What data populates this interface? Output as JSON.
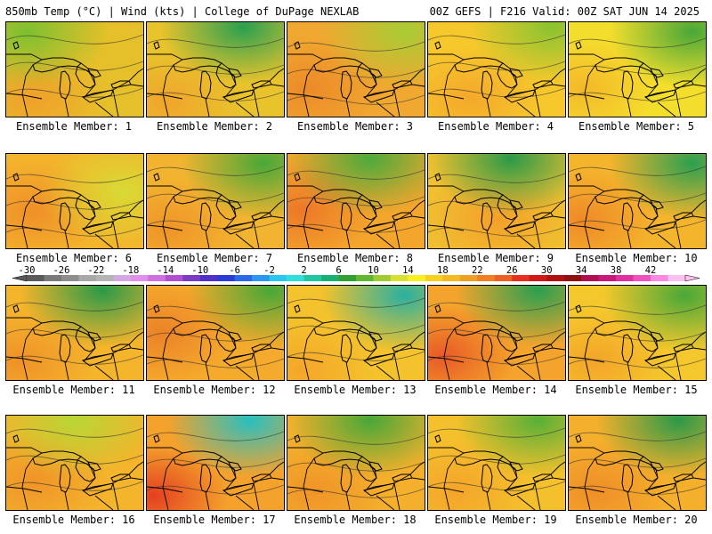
{
  "header": {
    "left": "850mb Temp (°C) | Wind (kts) | College of DuPage NEXLAB",
    "right": "00Z GEFS | F216 Valid: 00Z SAT JUN 14 2025"
  },
  "colorbar": {
    "labels": [
      "-30",
      "-26",
      "-22",
      "-18",
      "-14",
      "-10",
      "-6",
      "-2",
      "2",
      "6",
      "10",
      "14",
      "18",
      "22",
      "26",
      "30",
      "34",
      "38",
      "42"
    ],
    "colors": [
      "#5a5a5a",
      "#7a7a7a",
      "#8e8e8e",
      "#a8a8a8",
      "#b4b4b4",
      "#d4a8e4",
      "#e090e8",
      "#d070e0",
      "#b050d0",
      "#7a3cc4",
      "#5030c8",
      "#2a3cd8",
      "#2a6ae8",
      "#2a98f0",
      "#28c8f0",
      "#30e0d8",
      "#20c8a0",
      "#18b070",
      "#30a030",
      "#60b830",
      "#a0cc30",
      "#d8e030",
      "#f8f020",
      "#f8d020",
      "#f8b820",
      "#f0a020",
      "#f08020",
      "#f06020",
      "#e83020",
      "#d01818",
      "#b01010",
      "#901010",
      "#b01050",
      "#c81878",
      "#e030a0",
      "#f050c0",
      "#f888e0",
      "#fcc0f0"
    ]
  },
  "panels": [
    {
      "label": "Ensemble Member: 1",
      "base": "#e6c02a",
      "warm": "#f0a02a",
      "cool": "#7cc030",
      "coolX": 0.15,
      "coolY": 0.1,
      "warmX": 0.2,
      "warmY": 0.8
    },
    {
      "label": "Ensemble Member: 2",
      "base": "#e8c32c",
      "warm": "#f0a52c",
      "cool": "#2aa050",
      "coolX": 0.7,
      "coolY": 0.05,
      "warmX": 0.15,
      "warmY": 0.85
    },
    {
      "label": "Ensemble Member: 3",
      "base": "#f0a830",
      "warm": "#ec8a28",
      "cool": "#a8cc34",
      "coolX": 0.85,
      "coolY": 0.1,
      "warmX": 0.15,
      "warmY": 0.7
    },
    {
      "label": "Ensemble Member: 4",
      "base": "#f6c82c",
      "warm": "#f4a82a",
      "cool": "#88c430",
      "coolX": 0.9,
      "coolY": 0.05,
      "warmX": 0.3,
      "warmY": 0.8
    },
    {
      "label": "Ensemble Member: 5",
      "base": "#f4de2c",
      "warm": "#f4b82a",
      "cool": "#48a838",
      "coolX": 0.9,
      "coolY": 0.1,
      "warmX": 0.1,
      "warmY": 0.7
    },
    {
      "label": "Ensemble Member: 6",
      "base": "#f4b42c",
      "warm": "#ef8f28",
      "cool": "#d8da34",
      "coolX": 0.85,
      "coolY": 0.4,
      "warmX": 0.2,
      "warmY": 0.6
    },
    {
      "label": "Ensemble Member: 7",
      "base": "#f2b430",
      "warm": "#ef9428",
      "cool": "#48a838",
      "coolX": 0.85,
      "coolY": 0.1,
      "warmX": 0.15,
      "warmY": 0.8
    },
    {
      "label": "Ensemble Member: 8",
      "base": "#f4a62c",
      "warm": "#ec7828",
      "cool": "#4caa3c",
      "coolX": 0.6,
      "coolY": 0.05,
      "warmX": 0.1,
      "warmY": 0.6
    },
    {
      "label": "Ensemble Member: 9",
      "base": "#f0c030",
      "warm": "#f4a02a",
      "cool": "#2a9a48",
      "coolX": 0.6,
      "coolY": 0.05,
      "warmX": 0.5,
      "warmY": 0.7
    },
    {
      "label": "Ensemble Member: 10",
      "base": "#f4b42c",
      "warm": "#ef8a28",
      "cool": "#2aa050",
      "coolX": 0.9,
      "coolY": 0.1,
      "warmX": 0.1,
      "warmY": 0.7
    },
    {
      "label": "Ensemble Member: 11",
      "base": "#f4b42c",
      "warm": "#ef9228",
      "cool": "#2a9a48",
      "coolX": 0.7,
      "coolY": 0.05,
      "warmX": 0.1,
      "warmY": 0.8
    },
    {
      "label": "Ensemble Member: 12",
      "base": "#f4aa2c",
      "warm": "#ec8228",
      "cool": "#48a838",
      "coolX": 0.9,
      "coolY": 0.05,
      "warmX": 0.1,
      "warmY": 0.5
    },
    {
      "label": "Ensemble Member: 13",
      "base": "#f4c22c",
      "warm": "#f4a62a",
      "cool": "#2ab0a0",
      "coolX": 0.85,
      "coolY": 0.1,
      "warmX": 0.1,
      "warmY": 0.9
    },
    {
      "label": "Ensemble Member: 14",
      "base": "#f4a42c",
      "warm": "#e85a26",
      "cool": "#2aa050",
      "coolX": 0.8,
      "coolY": 0.05,
      "warmX": 0.1,
      "warmY": 0.75
    },
    {
      "label": "Ensemble Member: 15",
      "base": "#f4c82c",
      "warm": "#f4a42a",
      "cool": "#48a838",
      "coolX": 0.85,
      "coolY": 0.1,
      "warmX": 0.2,
      "warmY": 0.8
    },
    {
      "label": "Ensemble Member: 16",
      "base": "#f4b42c",
      "warm": "#ef9428",
      "cool": "#b8d634",
      "coolX": 0.5,
      "coolY": 0.05,
      "warmX": 0.2,
      "warmY": 0.7
    },
    {
      "label": "Ensemble Member: 17",
      "base": "#f4a22c",
      "warm": "#e44020",
      "cool": "#28c0c0",
      "coolX": 0.75,
      "coolY": 0.05,
      "warmX": 0.05,
      "warmY": 0.85
    },
    {
      "label": "Ensemble Member: 18",
      "base": "#f4b02c",
      "warm": "#ef9428",
      "cool": "#48a838",
      "coolX": 0.6,
      "coolY": 0.05,
      "warmX": 0.2,
      "warmY": 0.8
    },
    {
      "label": "Ensemble Member: 19",
      "base": "#f4c02c",
      "warm": "#f4a42a",
      "cool": "#58b038",
      "coolX": 0.8,
      "coolY": 0.05,
      "warmX": 0.2,
      "warmY": 0.8
    },
    {
      "label": "Ensemble Member: 20",
      "base": "#f4b02c",
      "warm": "#ef8e28",
      "cool": "#2a9a48",
      "coolX": 0.8,
      "coolY": 0.05,
      "warmX": 0.2,
      "warmY": 0.8
    }
  ]
}
